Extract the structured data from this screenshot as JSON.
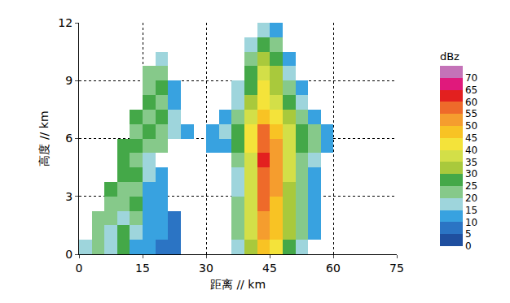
{
  "chart_data": {
    "type": "heatmap",
    "xlabel": "距离 // km",
    "ylabel": "高度 // km",
    "xlim": [
      0,
      75
    ],
    "ylim": [
      0,
      12
    ],
    "xticks": [
      0,
      15,
      30,
      45,
      60,
      75
    ],
    "yticks": [
      0,
      3,
      6,
      9,
      12
    ],
    "grid": true,
    "x": [
      1.5,
      4.5,
      7.5,
      10.5,
      13.5,
      16.5,
      19.5,
      22.5,
      25.5,
      28.5,
      31.5,
      34.5,
      37.5,
      40.5,
      43.5,
      46.5,
      49.5,
      52.5,
      55.5,
      58.5,
      61.5
    ],
    "y": [
      0.375,
      1.125,
      1.875,
      2.625,
      3.375,
      4.125,
      4.875,
      5.625,
      6.375,
      7.125,
      7.875,
      8.625,
      9.375,
      10.125,
      10.875,
      11.625
    ],
    "z": [
      [
        15,
        20,
        15,
        25,
        10,
        10,
        5,
        5,
        null,
        null,
        null,
        null,
        15,
        30,
        45,
        40,
        25,
        15,
        null,
        null,
        null
      ],
      [
        null,
        20,
        15,
        25,
        15,
        10,
        10,
        5,
        null,
        null,
        null,
        null,
        20,
        35,
        50,
        45,
        30,
        20,
        10,
        null,
        null
      ],
      [
        null,
        20,
        20,
        15,
        20,
        10,
        10,
        5,
        null,
        null,
        null,
        null,
        20,
        35,
        50,
        45,
        30,
        20,
        10,
        null,
        null
      ],
      [
        null,
        null,
        20,
        20,
        25,
        10,
        10,
        null,
        null,
        null,
        null,
        null,
        20,
        35,
        55,
        45,
        30,
        20,
        10,
        null,
        null
      ],
      [
        null,
        null,
        25,
        20,
        20,
        10,
        10,
        null,
        null,
        null,
        null,
        null,
        15,
        35,
        55,
        50,
        30,
        20,
        10,
        null,
        null
      ],
      [
        null,
        null,
        null,
        25,
        25,
        15,
        10,
        null,
        null,
        null,
        null,
        null,
        15,
        35,
        55,
        50,
        35,
        20,
        10,
        null,
        null
      ],
      [
        null,
        null,
        null,
        25,
        20,
        15,
        null,
        null,
        null,
        null,
        null,
        null,
        20,
        35,
        60,
        50,
        35,
        20,
        15,
        null,
        null
      ],
      [
        null,
        null,
        null,
        25,
        25,
        20,
        20,
        null,
        null,
        null,
        10,
        10,
        25,
        40,
        55,
        50,
        35,
        25,
        20,
        10,
        null
      ],
      [
        null,
        null,
        null,
        null,
        20,
        25,
        20,
        15,
        10,
        null,
        10,
        15,
        25,
        40,
        55,
        45,
        35,
        25,
        20,
        10,
        null
      ],
      [
        null,
        null,
        null,
        null,
        25,
        20,
        25,
        15,
        null,
        null,
        null,
        10,
        20,
        35,
        45,
        40,
        30,
        20,
        10,
        null,
        null
      ],
      [
        null,
        null,
        null,
        null,
        null,
        25,
        20,
        10,
        null,
        null,
        null,
        null,
        15,
        30,
        40,
        35,
        25,
        15,
        null,
        null,
        null
      ],
      [
        null,
        null,
        null,
        null,
        null,
        20,
        25,
        10,
        null,
        null,
        null,
        null,
        15,
        25,
        40,
        30,
        20,
        10,
        null,
        null,
        null
      ],
      [
        null,
        null,
        null,
        null,
        null,
        20,
        20,
        null,
        null,
        null,
        null,
        null,
        null,
        25,
        35,
        30,
        15,
        null,
        null,
        null,
        null
      ],
      [
        null,
        null,
        null,
        null,
        null,
        null,
        15,
        null,
        null,
        null,
        null,
        null,
        null,
        20,
        30,
        25,
        10,
        null,
        null,
        null,
        null
      ],
      [
        null,
        null,
        null,
        null,
        null,
        null,
        null,
        null,
        null,
        null,
        null,
        null,
        null,
        15,
        25,
        20,
        null,
        null,
        null,
        null,
        null
      ],
      [
        null,
        null,
        null,
        null,
        null,
        null,
        null,
        null,
        null,
        null,
        null,
        null,
        null,
        null,
        15,
        10,
        null,
        null,
        null,
        null,
        null
      ]
    ],
    "colorbar": {
      "title": "dBz",
      "range": [
        0,
        75
      ],
      "ticks": [
        0,
        5,
        10,
        15,
        20,
        25,
        30,
        35,
        40,
        45,
        50,
        55,
        60,
        65,
        70
      ],
      "colors": [
        "#1f4f9f",
        "#2b74c4",
        "#38a2e0",
        "#9ed5dc",
        "#86c98a",
        "#44a848",
        "#a9c93c",
        "#d3df48",
        "#f4e33a",
        "#f8c324",
        "#f59d2e",
        "#ee6a2a",
        "#e3201f",
        "#e0197c",
        "#c472b8"
      ]
    }
  }
}
